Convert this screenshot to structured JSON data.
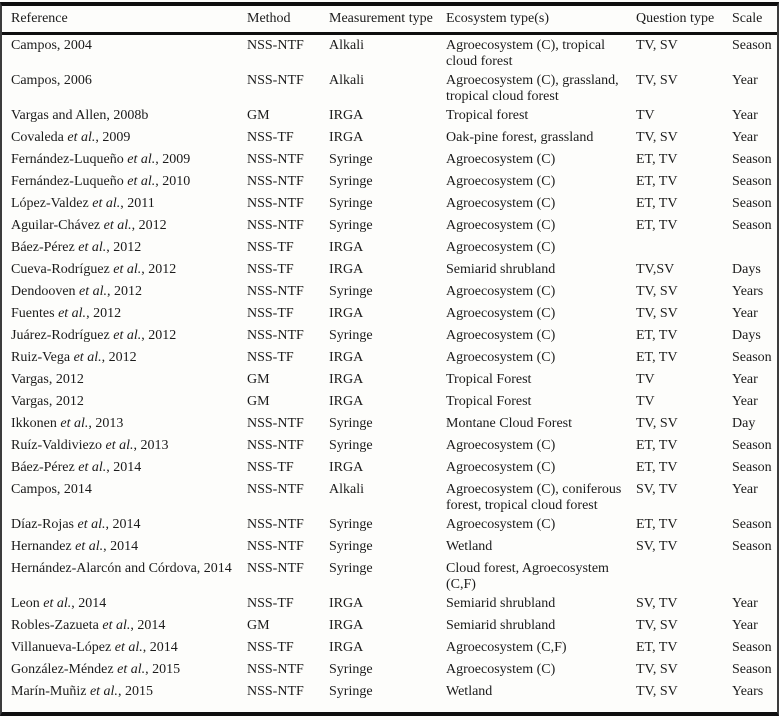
{
  "styles": {
    "text_color": "#1b1b1b",
    "rule_color": "#0e0e0e",
    "background": "#fdfdfb"
  },
  "table": {
    "columns": [
      {
        "key": "reference",
        "label": "Reference"
      },
      {
        "key": "method",
        "label": "Method"
      },
      {
        "key": "measurement",
        "label": "Measurement type"
      },
      {
        "key": "ecosystem",
        "label": "Ecosystem type(s)"
      },
      {
        "key": "question",
        "label": "Question type"
      },
      {
        "key": "scale",
        "label": "Scale"
      }
    ],
    "rows": [
      {
        "reference": "Campos, 2004",
        "method": "NSS-NTF",
        "measurement": "Alkali",
        "ecosystem": "Agroecosystem (C), tropical\ncloud forest",
        "question": "TV, SV",
        "scale": "Season"
      },
      {
        "reference": "Campos, 2006",
        "method": "NSS-NTF",
        "measurement": "Alkali",
        "ecosystem": "Agroecosystem (C), grassland,\ntropical cloud forest",
        "question": "TV, SV",
        "scale": "Year"
      },
      {
        "reference": "Vargas and Allen, 2008b",
        "method": "GM",
        "measurement": "IRGA",
        "ecosystem": "Tropical forest",
        "question": "TV",
        "scale": "Year"
      },
      {
        "reference": "Covaleda et al., 2009",
        "method": "NSS-TF",
        "measurement": "IRGA",
        "ecosystem": "Oak-pine forest, grassland",
        "question": "TV, SV",
        "scale": "Year"
      },
      {
        "reference": "Fernández-Luqueño et al., 2009",
        "method": "NSS-NTF",
        "measurement": "Syringe",
        "ecosystem": "Agroecosystem (C)",
        "question": "ET, TV",
        "scale": "Season"
      },
      {
        "reference": "Fernández-Luqueño et al., 2010",
        "method": "NSS-NTF",
        "measurement": "Syringe",
        "ecosystem": "Agroecosystem (C)",
        "question": "ET, TV",
        "scale": "Season"
      },
      {
        "reference": "López-Valdez et al., 2011",
        "method": "NSS-NTF",
        "measurement": "Syringe",
        "ecosystem": "Agroecosystem (C)",
        "question": "ET, TV",
        "scale": "Season"
      },
      {
        "reference": "Aguilar-Chávez et al., 2012",
        "method": "NSS-NTF",
        "measurement": "Syringe",
        "ecosystem": "Agroecosystem (C)",
        "question": "ET, TV",
        "scale": "Season"
      },
      {
        "reference": "Báez-Pérez et al., 2012",
        "method": "NSS-TF",
        "measurement": "IRGA",
        "ecosystem": "Agroecosystem (C)",
        "question": "",
        "scale": ""
      },
      {
        "reference": "Cueva-Rodríguez et al., 2012",
        "method": "NSS-TF",
        "measurement": "IRGA",
        "ecosystem": "Semiarid shrubland",
        "question": "TV,SV",
        "scale": "Days"
      },
      {
        "reference": "Dendooven et al., 2012",
        "method": "NSS-NTF",
        "measurement": "Syringe",
        "ecosystem": "Agroecosystem (C)",
        "question": "TV, SV",
        "scale": "Years"
      },
      {
        "reference": "Fuentes et al., 2012",
        "method": "NSS-TF",
        "measurement": "IRGA",
        "ecosystem": "Agroecosystem (C)",
        "question": "TV, SV",
        "scale": "Year"
      },
      {
        "reference": "Juárez-Rodríguez et al., 2012",
        "method": "NSS-NTF",
        "measurement": "Syringe",
        "ecosystem": "Agroecosystem (C)",
        "question": "ET, TV",
        "scale": "Days"
      },
      {
        "reference": "Ruiz-Vega et al., 2012",
        "method": "NSS-TF",
        "measurement": "IRGA",
        "ecosystem": "Agroecosystem (C)",
        "question": "ET, TV",
        "scale": "Season"
      },
      {
        "reference": "Vargas, 2012",
        "method": "GM",
        "measurement": "IRGA",
        "ecosystem": "Tropical Forest",
        "question": "TV",
        "scale": "Year"
      },
      {
        "reference": "Vargas, 2012",
        "method": "GM",
        "measurement": "IRGA",
        "ecosystem": "Tropical Forest",
        "question": "TV",
        "scale": "Year"
      },
      {
        "reference": "Ikkonen et al., 2013",
        "method": "NSS-NTF",
        "measurement": "Syringe",
        "ecosystem": "Montane Cloud Forest",
        "question": "TV, SV",
        "scale": "Day"
      },
      {
        "reference": "Ruíz-Valdiviezo et al., 2013",
        "method": "NSS-NTF",
        "measurement": "Syringe",
        "ecosystem": "Agroecosystem (C)",
        "question": "ET, TV",
        "scale": "Season"
      },
      {
        "reference": "Báez-Pérez et al., 2014",
        "method": "NSS-TF",
        "measurement": "IRGA",
        "ecosystem": "Agroecosystem (C)",
        "question": "ET, TV",
        "scale": "Season"
      },
      {
        "reference": "Campos, 2014",
        "method": "NSS-NTF",
        "measurement": "Alkali",
        "ecosystem": "Agroecosystem (C), coniferous\nforest, tropical cloud forest",
        "question": "SV, TV",
        "scale": "Year"
      },
      {
        "reference": "Díaz-Rojas et al., 2014",
        "method": "NSS-NTF",
        "measurement": "Syringe",
        "ecosystem": "Agroecosystem (C)",
        "question": "ET, TV",
        "scale": "Season"
      },
      {
        "reference": "Hernandez et al., 2014",
        "method": "NSS-NTF",
        "measurement": "Syringe",
        "ecosystem": "Wetland",
        "question": "SV, TV",
        "scale": "Season"
      },
      {
        "reference": "Hernández-Alarcón and Córdova, 2014",
        "method": "NSS-NTF",
        "measurement": "Syringe",
        "ecosystem": "Cloud forest, Agroecosystem\n(C,F)",
        "question": "",
        "scale": ""
      },
      {
        "reference": "Leon et al., 2014",
        "method": "NSS-TF",
        "measurement": "IRGA",
        "ecosystem": "Semiarid shrubland",
        "question": "SV, TV",
        "scale": "Year"
      },
      {
        "reference": "Robles-Zazueta et al., 2014",
        "method": "GM",
        "measurement": "IRGA",
        "ecosystem": "Semiarid shrubland",
        "question": "TV, SV",
        "scale": "Year"
      },
      {
        "reference": "Villanueva-López et al., 2014",
        "method": "NSS-TF",
        "measurement": "IRGA",
        "ecosystem": "Agroecosystem (C,F)",
        "question": "ET, TV",
        "scale": "Season"
      },
      {
        "reference": "González-Méndez et al., 2015",
        "method": "NSS-NTF",
        "measurement": "Syringe",
        "ecosystem": "Agroecosystem (C)",
        "question": "TV, SV",
        "scale": "Season"
      },
      {
        "reference": "Marín-Muñiz et al., 2015",
        "method": "NSS-NTF",
        "measurement": "Syringe",
        "ecosystem": "Wetland",
        "question": "TV, SV",
        "scale": "Years"
      }
    ]
  }
}
